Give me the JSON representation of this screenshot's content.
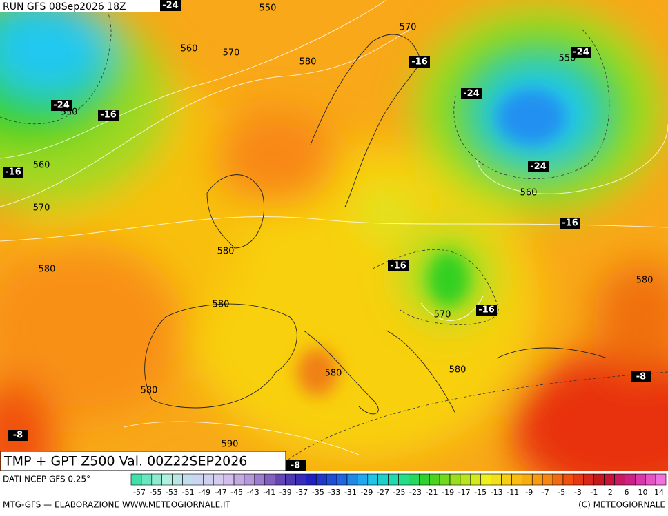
{
  "header": {
    "run": "RUN GFS 08Sep2026 18Z"
  },
  "map": {
    "height_labels": [
      550,
      570,
      560,
      570,
      580,
      550,
      550,
      560,
      560,
      570,
      580,
      580,
      580,
      580,
      570,
      580,
      580,
      580,
      590
    ],
    "temp_labels": [
      -24,
      -24,
      -16,
      -16,
      -24,
      -24,
      -16,
      -24,
      -16,
      -16,
      -16,
      -8,
      -8,
      -8
    ]
  },
  "panel": {
    "title": "TMP + GPT Z500 Val. 00Z22SEP2026",
    "source": "DATI NCEP GFS 0.25°",
    "footer_left": "MTG-GFS — ELABORAZIONE WWW.METEOGIORNALE.IT",
    "footer_right": "(C) METEOGIORNALE"
  },
  "scale": {
    "labels": [
      -57,
      -55,
      -53,
      -51,
      -49,
      -47,
      -45,
      -43,
      -41,
      -39,
      -37,
      -35,
      -33,
      -31,
      -29,
      -27,
      -25,
      -23,
      -21,
      -19,
      -17,
      -15,
      -13,
      -11,
      -9,
      -7,
      -5,
      -3,
      -1,
      2,
      6,
      10,
      14
    ],
    "colors": [
      "#40e0a8",
      "#b0f0e0",
      "#c8d8f0",
      "#d8c8f0",
      "#b090d8",
      "#6040b0",
      "#2020c0",
      "#2060e0",
      "#20c0f0",
      "#20e0a0",
      "#30d020",
      "#a0e020",
      "#f0f020",
      "#f8c010",
      "#f89010",
      "#f04010",
      "#c01020",
      "#d02090",
      "#f070e0"
    ]
  }
}
